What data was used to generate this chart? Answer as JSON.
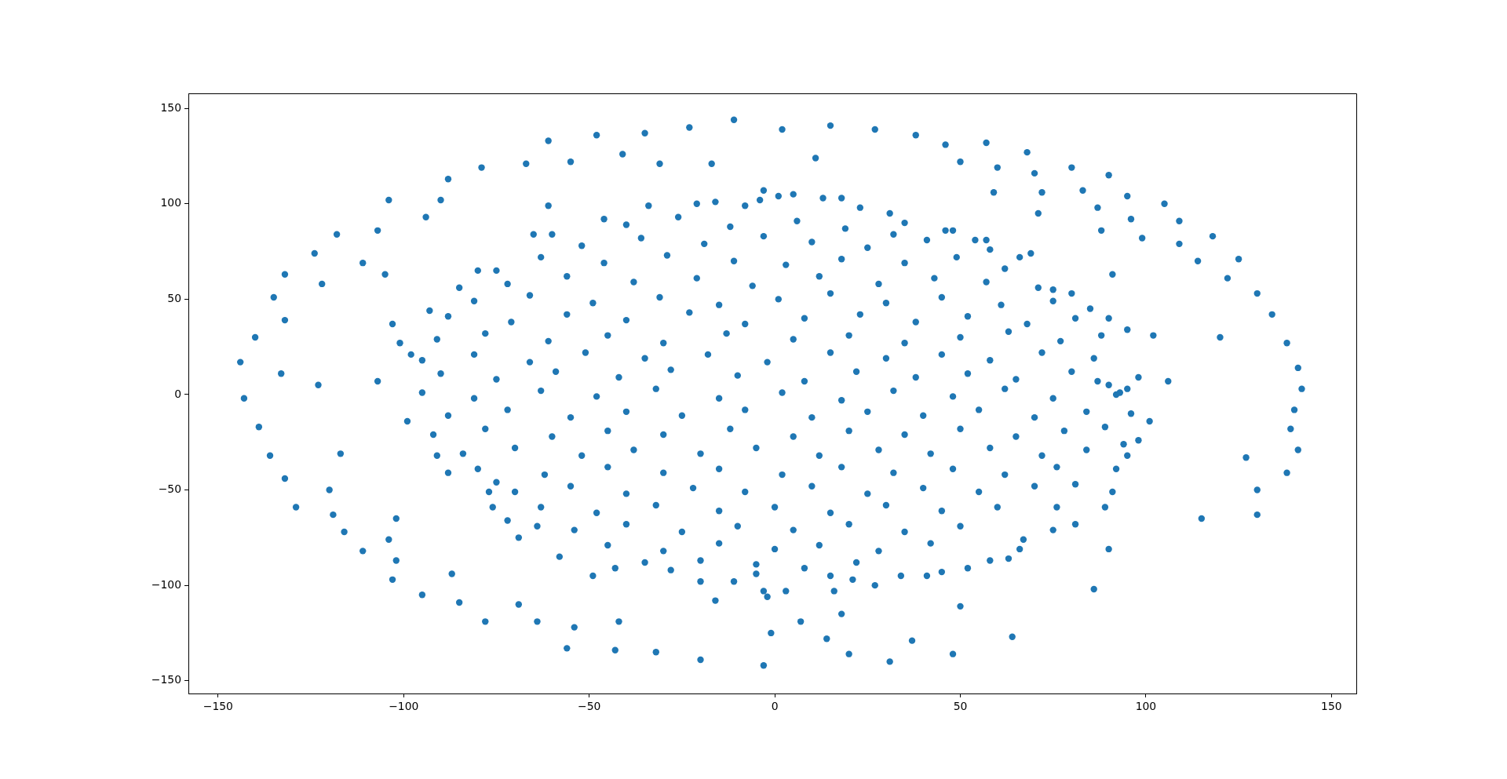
{
  "chart_data": {
    "type": "scatter",
    "color": "#1f77b4",
    "marker": "circle",
    "xlim": [
      -158,
      156.7
    ],
    "ylim": [
      -156.7,
      157.9
    ],
    "xticks": [
      {
        "value": -150,
        "label": "−150"
      },
      {
        "value": -100,
        "label": "−100"
      },
      {
        "value": -50,
        "label": "−50"
      },
      0,
      50,
      100,
      150
    ],
    "yticks": [
      {
        "value": -150,
        "label": "−150"
      },
      {
        "value": -100,
        "label": "−100"
      },
      {
        "value": -50,
        "label": "−50"
      },
      0,
      50,
      100,
      150
    ],
    "x": [
      -61,
      -79,
      -67,
      -55,
      -88,
      -104,
      -90,
      -94,
      -61,
      -118,
      -107,
      -124,
      -111,
      -105,
      -132,
      -122,
      -135,
      -132,
      -140,
      -144,
      -133,
      -123,
      -143,
      -139,
      -136,
      -117,
      -132,
      -129,
      -120,
      -119,
      -116,
      -111,
      -102,
      -104,
      -102,
      -103,
      -95,
      -87,
      -85,
      -78,
      -69,
      -64,
      -54,
      -56,
      -48,
      -35,
      -23,
      -11,
      2,
      15,
      27,
      38,
      46,
      57,
      -41,
      -31,
      -17,
      11,
      50,
      68,
      60,
      70,
      80,
      90,
      59,
      72,
      83,
      95,
      71,
      87,
      105,
      96,
      109,
      88,
      99,
      118,
      109,
      114,
      125,
      122,
      130,
      134,
      91,
      120,
      138,
      141,
      142,
      140,
      139,
      141,
      127,
      138,
      130,
      130,
      115,
      90,
      86,
      64,
      -42,
      -43,
      -32,
      -20,
      -16,
      -3,
      -1,
      7,
      14,
      18,
      20,
      31,
      37,
      48,
      50,
      -107,
      -103,
      -98,
      -101,
      -93,
      -80,
      -75,
      -65,
      -60,
      -99,
      -91,
      -88,
      -77,
      -76,
      -72,
      -69,
      -64,
      -58,
      -85,
      -75,
      106,
      102,
      95,
      101,
      98,
      95,
      92,
      91,
      89,
      81,
      75,
      66,
      63,
      58,
      52,
      90,
      88,
      85,
      80,
      75,
      69,
      66,
      57,
      54,
      93,
      87,
      89,
      94,
      81,
      67,
      76,
      90,
      92,
      95,
      -3,
      1,
      5,
      13,
      18,
      -4,
      -8,
      -16,
      -21,
      -34,
      -46,
      23,
      31,
      35,
      46,
      48,
      -49,
      -43,
      -28,
      -20,
      -11,
      -3,
      -2,
      3,
      -5,
      15,
      16,
      21,
      27,
      34,
      41,
      45,
      -40,
      -26,
      -12,
      6,
      19,
      32,
      -52,
      -36,
      -19,
      -3,
      10,
      25,
      41,
      58,
      -63,
      -46,
      -29,
      -11,
      3,
      18,
      35,
      49,
      62,
      -72,
      -56,
      -38,
      -21,
      -6,
      12,
      28,
      43,
      57,
      71,
      -81,
      -66,
      -49,
      -31,
      -15,
      1,
      15,
      30,
      45,
      61,
      75,
      -88,
      -71,
      -56,
      -40,
      -23,
      -8,
      8,
      23,
      38,
      52,
      68,
      81,
      -91,
      -78,
      -61,
      -45,
      -30,
      -13,
      5,
      20,
      35,
      50,
      63,
      77,
      -95,
      -81,
      -66,
      -51,
      -35,
      -18,
      -2,
      15,
      30,
      45,
      58,
      72,
      86,
      -90,
      -75,
      -59,
      -42,
      -28,
      -10,
      8,
      22,
      38,
      52,
      65,
      80,
      98,
      -95,
      -81,
      -63,
      -48,
      -32,
      -15,
      2,
      18,
      32,
      48,
      62,
      75,
      -88,
      -72,
      -55,
      -40,
      -25,
      -8,
      10,
      25,
      40,
      55,
      70,
      84,
      96,
      -92,
      -78,
      -60,
      -45,
      -30,
      -12,
      5,
      20,
      35,
      50,
      65,
      78,
      -84,
      -70,
      -52,
      -38,
      -20,
      -5,
      12,
      28,
      42,
      58,
      72,
      84,
      -80,
      -62,
      -45,
      -30,
      -15,
      2,
      18,
      32,
      48,
      62,
      76,
      -70,
      -55,
      -40,
      -22,
      -8,
      10,
      25,
      40,
      55,
      70,
      -63,
      -48,
      -32,
      -15,
      0,
      15,
      30,
      45,
      60,
      -54,
      -40,
      -25,
      -10,
      5,
      20,
      35,
      50,
      -45,
      -30,
      -15,
      0,
      12,
      28,
      42,
      -35,
      -20,
      -5,
      8,
      22
    ],
    "values": [
      133,
      119,
      121,
      122,
      113,
      102,
      102,
      93,
      99,
      84,
      86,
      74,
      69,
      63,
      63,
      58,
      51,
      39,
      30,
      17,
      11,
      5,
      -2,
      -17,
      -32,
      -31,
      -44,
      -59,
      -50,
      -63,
      -72,
      -82,
      -65,
      -76,
      -87,
      -97,
      -105,
      -94,
      -109,
      -119,
      -110,
      -119,
      -122,
      -133,
      136,
      137,
      140,
      144,
      139,
      141,
      139,
      136,
      131,
      132,
      126,
      121,
      121,
      124,
      122,
      127,
      119,
      116,
      119,
      115,
      106,
      106,
      107,
      104,
      95,
      98,
      100,
      92,
      91,
      86,
      82,
      83,
      79,
      70,
      71,
      61,
      53,
      42,
      63,
      30,
      27,
      14,
      3,
      -8,
      -18,
      -29,
      -33,
      -41,
      -50,
      -63,
      -65,
      -81,
      -102,
      -127,
      -119,
      -134,
      -135,
      -139,
      -108,
      -142,
      -125,
      -119,
      -128,
      -115,
      -136,
      -140,
      -129,
      -136,
      -111,
      7,
      37,
      21,
      27,
      44,
      65,
      65,
      84,
      84,
      -14,
      -32,
      -41,
      -51,
      -59,
      -66,
      -75,
      -69,
      -85,
      56,
      -46,
      7,
      31,
      34,
      -14,
      -24,
      -32,
      -39,
      -51,
      -59,
      -68,
      -71,
      -81,
      -86,
      -87,
      -91,
      40,
      31,
      45,
      53,
      55,
      74,
      72,
      81,
      81,
      1,
      7,
      -17,
      -26,
      -47,
      -76,
      -59,
      5,
      0,
      3,
      107,
      104,
      105,
      103,
      103,
      102,
      99,
      101,
      100,
      99,
      92,
      98,
      95,
      90,
      86,
      86,
      -95,
      -91,
      -92,
      -98,
      -98,
      -103,
      -106,
      -103,
      -94,
      -95,
      -103,
      -97,
      -100,
      -95,
      -95,
      -93,
      89,
      93,
      88,
      91,
      87,
      84,
      78,
      82,
      79,
      83,
      80,
      77,
      81,
      76,
      72,
      69,
      73,
      70,
      68,
      71,
      69,
      72,
      66,
      58,
      62,
      59,
      61,
      57,
      62,
      58,
      61,
      59,
      56,
      49,
      52,
      48,
      51,
      47,
      50,
      53,
      48,
      51,
      47,
      49,
      41,
      38,
      42,
      39,
      43,
      37,
      40,
      42,
      38,
      41,
      37,
      40,
      29,
      32,
      28,
      31,
      27,
      32,
      29,
      31,
      27,
      30,
      33,
      28,
      18,
      21,
      17,
      22,
      19,
      21,
      17,
      22,
      19,
      21,
      18,
      22,
      19,
      11,
      8,
      12,
      9,
      13,
      10,
      7,
      12,
      9,
      11,
      8,
      12,
      9,
      1,
      -2,
      2,
      -1,
      3,
      -2,
      1,
      -3,
      2,
      -1,
      3,
      -2,
      -11,
      -8,
      -12,
      -9,
      -11,
      -8,
      -12,
      -9,
      -11,
      -8,
      -12,
      -9,
      -10,
      -21,
      -18,
      -22,
      -19,
      -21,
      -18,
      -22,
      -19,
      -21,
      -18,
      -22,
      -19,
      -31,
      -28,
      -32,
      -29,
      -31,
      -28,
      -32,
      -29,
      -31,
      -28,
      -32,
      -29,
      -39,
      -42,
      -38,
      -41,
      -39,
      -42,
      -38,
      -41,
      -39,
      -42,
      -38,
      -51,
      -48,
      -52,
      -49,
      -51,
      -48,
      -52,
      -49,
      -51,
      -48,
      -59,
      -62,
      -58,
      -61,
      -59,
      -62,
      -58,
      -61,
      -59,
      -71,
      -68,
      -72,
      -69,
      -71,
      -68,
      -72,
      -69,
      -79,
      -82,
      -78,
      -81,
      -79,
      -82,
      -78,
      -88,
      -87,
      -89,
      -91,
      -88
    ]
  }
}
